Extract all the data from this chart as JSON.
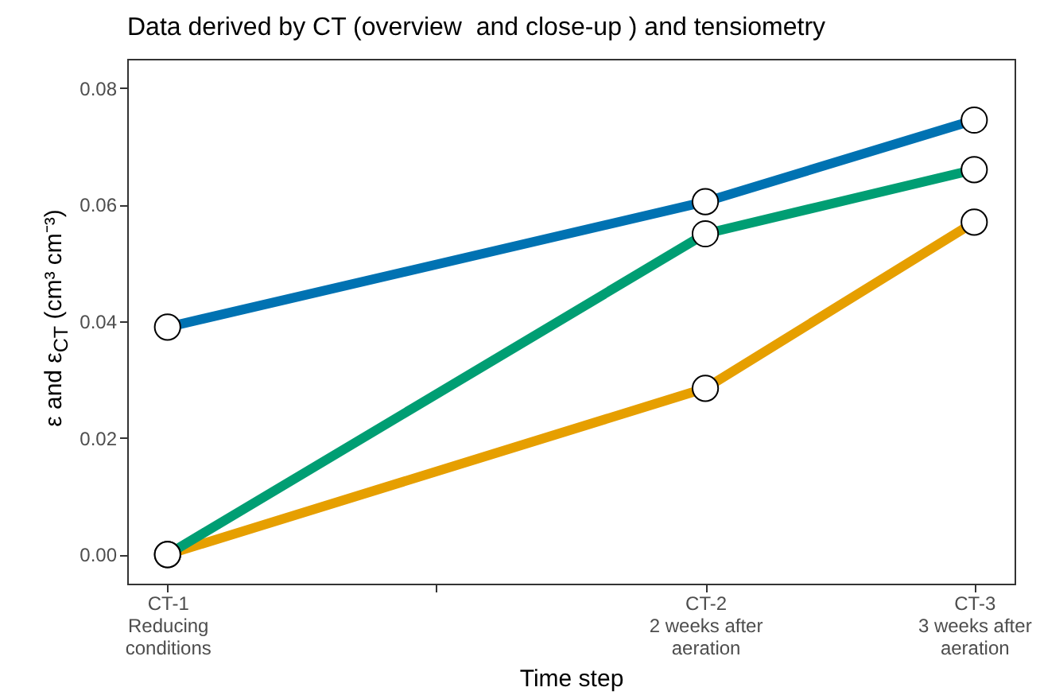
{
  "chart_data": {
    "type": "line",
    "title": "Data derived by CT (overview  and close-up ) and tensiometry",
    "xlabel": "Time step",
    "ylabel": "ε and ε$_{CT}$ (cm³ cm⁻³)",
    "categories": [
      "CT-1\nReducing\nconditions",
      null,
      "CT-2\n2 weeks after\naeration",
      "CT-3\n3 weeks after\naeration"
    ],
    "series": [
      {
        "color": "#0072b2",
        "values": [
          0.039,
          null,
          0.0605,
          0.0745
        ]
      },
      {
        "color": "#e69f00",
        "values": [
          0,
          null,
          0.0285,
          0.057
        ]
      },
      {
        "color": "#009e73",
        "values": [
          0,
          null,
          0.055,
          0.066
        ]
      }
    ],
    "ylim": [
      -0.005,
      0.085
    ],
    "yticks": [
      {
        "value": 0,
        "label": "0.00"
      },
      {
        "value": 0.02,
        "label": "0.02"
      },
      {
        "value": 0.04,
        "label": "0.04"
      },
      {
        "value": 0.06,
        "label": "0.06"
      },
      {
        "value": 0.08,
        "label": "0.08"
      }
    ],
    "grid": false,
    "legend": false,
    "marker": "circle",
    "line_style": "solid"
  }
}
